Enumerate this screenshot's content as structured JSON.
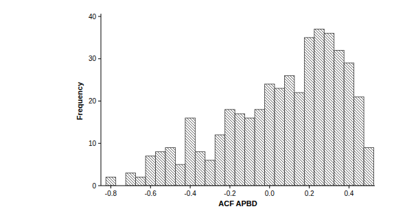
{
  "chart_data": {
    "type": "histogram",
    "x_label": "ACF APBD",
    "y_label": "Frequency",
    "bins": [
      -0.825,
      -0.775,
      -0.725,
      -0.675,
      -0.625,
      -0.575,
      -0.525,
      -0.475,
      -0.425,
      -0.375,
      -0.325,
      -0.275,
      -0.225,
      -0.175,
      -0.125,
      -0.075,
      -0.025,
      0.025,
      0.075,
      0.125,
      0.175,
      0.225,
      0.275,
      0.325,
      0.375,
      0.425,
      0.475,
      0.525
    ],
    "values": [
      2,
      0,
      3,
      2,
      7,
      8,
      9,
      5,
      16,
      8,
      6,
      12,
      18,
      17,
      16,
      18,
      24,
      23,
      26,
      22,
      35,
      37,
      36,
      32,
      29,
      21,
      9
    ],
    "color": "#333333",
    "xlim": [
      -0.85,
      0.53
    ],
    "xticks": [
      -0.8,
      -0.6,
      -0.4,
      -0.2,
      {
        "value": 0,
        "label": "0.0"
      },
      0.2,
      0.4
    ],
    "ylim": [
      0,
      40
    ],
    "yticks": [
      0,
      10,
      20,
      30,
      40
    ],
    "grid": false
  }
}
